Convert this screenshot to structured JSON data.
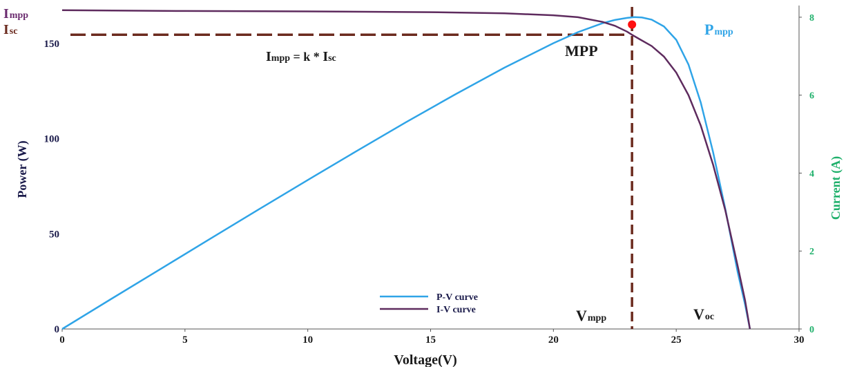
{
  "chart_data": {
    "type": "line",
    "x_axis": {
      "label": "Voltage(V)",
      "range": [
        0,
        30
      ],
      "ticks": [
        "0",
        "5",
        "10",
        "15",
        "20",
        "25",
        "30"
      ]
    },
    "y_left_axis": {
      "label": "Power (W)",
      "range": [
        0,
        170
      ],
      "ticks": [
        "0",
        "50",
        "100",
        "150"
      ],
      "color": "#1a1a4a"
    },
    "y_right_axis": {
      "label": "Current (A)",
      "range": [
        0,
        8.3
      ],
      "ticks": [
        "0",
        "2",
        "4",
        "6",
        "8"
      ],
      "color": "#1fb06b"
    },
    "series": [
      {
        "name": "P-V curve",
        "axis": "left",
        "color": "#2fa4e7",
        "x": [
          0,
          2,
          4,
          6,
          8,
          10,
          12,
          14,
          16,
          18,
          20,
          21,
          22,
          22.5,
          23,
          23.3,
          23.6,
          24,
          24.5,
          25,
          25.5,
          26,
          26.5,
          27,
          27.5,
          27.8,
          28
        ],
        "y": [
          0,
          15.8,
          31.5,
          47.2,
          62.8,
          78.3,
          93.6,
          108.7,
          123.3,
          137.3,
          150.2,
          156,
          160.7,
          162.4,
          163.5,
          163.9,
          163.7,
          162.6,
          159,
          152,
          139,
          119,
          93,
          63,
          30,
          13,
          0
        ]
      },
      {
        "name": "I-V curve",
        "axis": "right",
        "color": "#5e2b5e",
        "x": [
          0,
          5,
          10,
          15,
          18,
          20,
          21,
          22,
          22.5,
          23,
          23.2,
          23.5,
          24,
          24.5,
          25,
          25.5,
          26,
          26.5,
          27,
          27.5,
          27.8,
          28
        ],
        "y": [
          8.18,
          8.16,
          8.15,
          8.13,
          8.1,
          8.05,
          8.0,
          7.88,
          7.78,
          7.63,
          7.55,
          7.44,
          7.26,
          6.99,
          6.58,
          6.0,
          5.22,
          4.22,
          3.04,
          1.62,
          0.74,
          0
        ]
      }
    ],
    "mpp": {
      "x": 23.2,
      "y": 160
    },
    "legend": {
      "position": "bottom-center"
    },
    "annotations": {
      "impp_left": {
        "main": "I",
        "sub": "mpp"
      },
      "isc_left": {
        "main": "I",
        "sub": "sc"
      },
      "formula": {
        "main": "I",
        "sub": "mpp",
        "mid": " = k * ",
        "main2": "I",
        "sub2": "sc"
      },
      "mpp_label": "MPP",
      "pmpp": {
        "main": "P",
        "sub": "mpp"
      },
      "vmpp": {
        "main": "V",
        "sub": "mpp"
      },
      "voc": {
        "main": "V",
        "sub": "oc"
      }
    },
    "reference_lines": {
      "isc_value": 7.55,
      "vmpp_value": 23.2,
      "color": "#6b2a1e",
      "style": "dashed"
    },
    "grid": false
  }
}
